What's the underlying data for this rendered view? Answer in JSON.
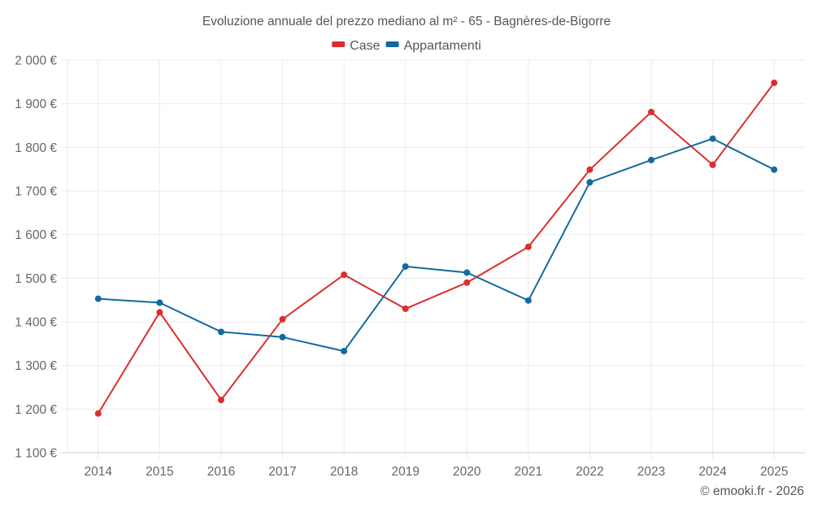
{
  "chart_data": {
    "type": "line",
    "title": "Evoluzione annuale del prezzo mediano al m² - 65 - Bagnères-de-Bigorre",
    "xlabel": "",
    "ylabel": "",
    "x": [
      "2014",
      "2015",
      "2016",
      "2017",
      "2018",
      "2019",
      "2020",
      "2021",
      "2022",
      "2023",
      "2024",
      "2025"
    ],
    "series": [
      {
        "name": "Case",
        "color": "#dc2d2d",
        "values": [
          1190,
          1422,
          1221,
          1406,
          1508,
          1430,
          1490,
          1572,
          1749,
          1881,
          1760,
          1948
        ]
      },
      {
        "name": "Appartamenti",
        "color": "#126aa0",
        "values": [
          1453,
          1444,
          1377,
          1365,
          1333,
          1527,
          1513,
          1449,
          1720,
          1771,
          1820,
          1749
        ]
      }
    ],
    "ylim": [
      1100,
      2000
    ],
    "yticks": [
      1100,
      1200,
      1300,
      1400,
      1500,
      1600,
      1700,
      1800,
      1900,
      2000
    ],
    "ytick_labels": [
      "1 100 €",
      "1 200 €",
      "1 300 €",
      "1 400 €",
      "1 500 €",
      "1 600 €",
      "1 700 €",
      "1 800 €",
      "1 900 €",
      "2 000 €"
    ],
    "grid": true,
    "legend_position": "top-center",
    "markers": true
  },
  "credit": "© emooki.fr - 2026"
}
